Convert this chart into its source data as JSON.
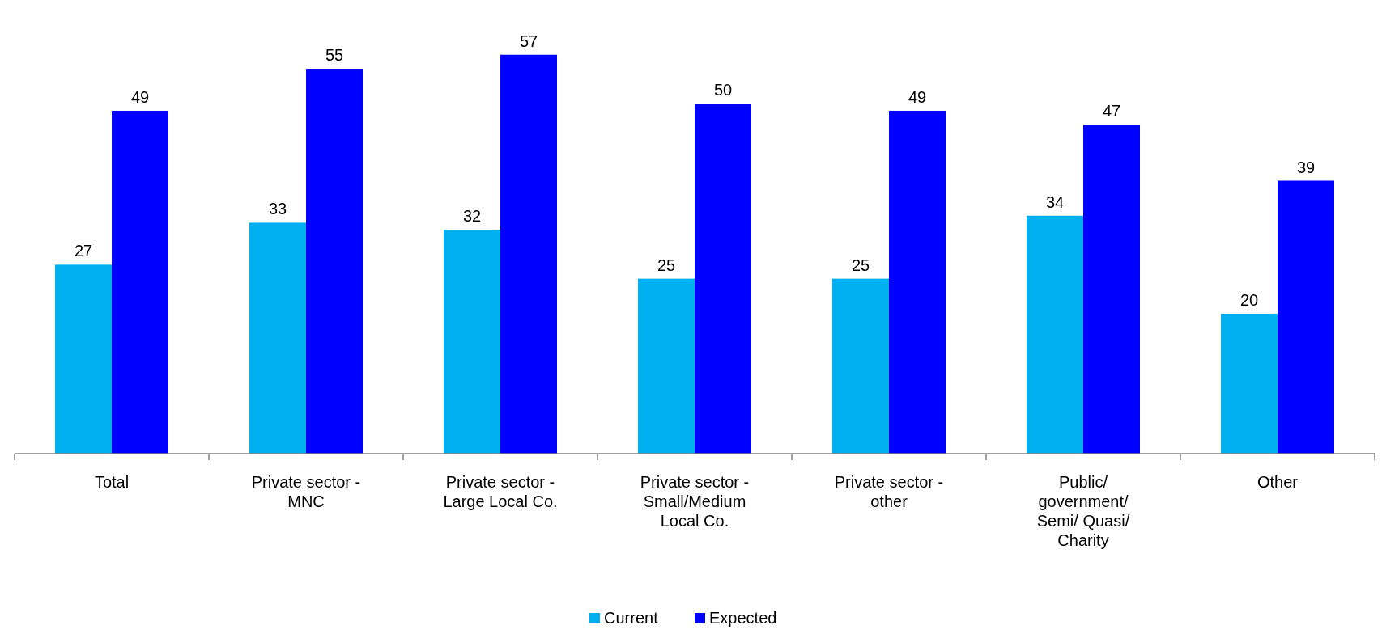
{
  "chart_data": {
    "type": "bar",
    "categories": [
      "Total",
      "Private sector - MNC",
      "Private sector - Large Local Co.",
      "Private sector - Small/Medium Local Co.",
      "Private sector - other",
      "Public/ government/ Semi/ Quasi/ Charity",
      "Other"
    ],
    "series": [
      {
        "name": "Current",
        "color": "#00b0f0",
        "values": [
          27,
          33,
          32,
          25,
          25,
          34,
          20
        ]
      },
      {
        "name": "Expected",
        "color": "#0000ff",
        "values": [
          49,
          55,
          57,
          50,
          49,
          47,
          39
        ]
      }
    ],
    "data_labels": true,
    "legend": "bottom"
  }
}
